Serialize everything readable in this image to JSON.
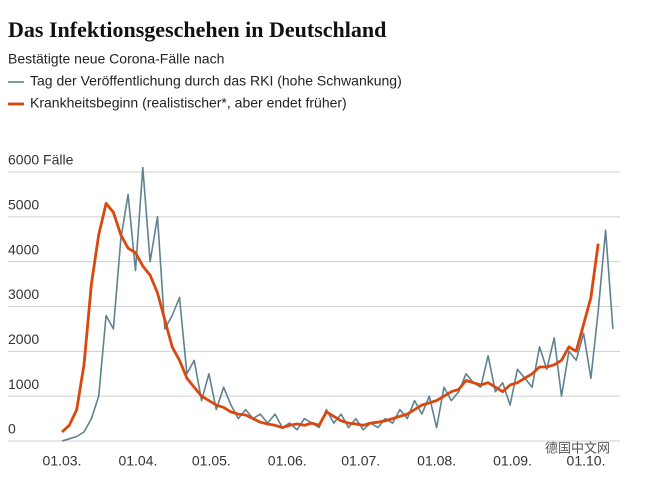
{
  "chart_data": {
    "type": "line",
    "title": "Das Infektionsgeschehen in Deutschland",
    "subtitle": "Bestätigte neue Corona-Fälle nach",
    "watermark": "德国中文网",
    "x": [
      "01.03.",
      "04.03.",
      "07.03.",
      "10.03.",
      "13.03.",
      "16.03.",
      "19.03.",
      "22.03.",
      "25.03.",
      "28.03.",
      "31.03.",
      "03.04.",
      "06.04.",
      "09.04.",
      "12.04.",
      "15.04.",
      "18.04.",
      "21.04.",
      "24.04.",
      "27.04.",
      "30.04.",
      "03.05.",
      "06.05.",
      "09.05.",
      "12.05.",
      "15.05.",
      "18.05.",
      "21.05.",
      "24.05.",
      "27.05.",
      "30.05.",
      "02.06.",
      "05.06.",
      "08.06.",
      "11.06.",
      "14.06.",
      "17.06.",
      "20.06.",
      "23.06.",
      "26.06.",
      "29.06.",
      "02.07.",
      "05.07.",
      "08.07.",
      "11.07.",
      "14.07.",
      "17.07.",
      "20.07.",
      "23.07.",
      "26.07.",
      "29.07.",
      "01.08.",
      "04.08.",
      "07.08.",
      "10.08.",
      "13.08.",
      "16.08.",
      "19.08.",
      "22.08.",
      "25.08.",
      "28.08.",
      "31.08.",
      "03.09.",
      "06.09.",
      "09.09.",
      "12.09.",
      "15.09.",
      "18.09.",
      "21.09.",
      "24.09.",
      "27.09.",
      "30.09.",
      "03.10.",
      "06.10.",
      "09.10.",
      "12.10."
    ],
    "series": [
      {
        "name": "Tag der Veröffentlichung durch das RKI (hohe Schwankung)",
        "color": "#5f8291",
        "width": 1.6,
        "values": [
          0,
          50,
          100,
          200,
          500,
          1000,
          2800,
          2500,
          4500,
          5500,
          3800,
          6100,
          4000,
          5000,
          2500,
          2800,
          3200,
          1500,
          1800,
          900,
          1500,
          700,
          1200,
          800,
          500,
          700,
          500,
          600,
          400,
          600,
          300,
          400,
          250,
          500,
          400,
          300,
          700,
          400,
          600,
          300,
          500,
          250,
          400,
          300,
          500,
          400,
          700,
          500,
          900,
          600,
          1000,
          300,
          1200,
          900,
          1100,
          1500,
          1300,
          1200,
          1900,
          1100,
          1300,
          800,
          1600,
          1400,
          1200,
          2100,
          1600,
          2300,
          1000,
          2000,
          1800,
          2400,
          1400,
          2900,
          4700,
          2500
        ]
      },
      {
        "name": "Krankheitsbeginn (realistischer*, aber endet früher)",
        "color": "#d9480f",
        "width": 2.8,
        "values": [
          200,
          350,
          700,
          1700,
          3500,
          4600,
          5300,
          5100,
          4600,
          4300,
          4200,
          3900,
          3700,
          3300,
          2700,
          2100,
          1800,
          1400,
          1200,
          1000,
          900,
          800,
          750,
          650,
          600,
          580,
          500,
          420,
          380,
          350,
          300,
          350,
          380,
          350,
          400,
          350,
          650,
          550,
          450,
          400,
          380,
          350,
          400,
          420,
          450,
          500,
          550,
          600,
          700,
          800,
          850,
          900,
          1000,
          1100,
          1150,
          1350,
          1300,
          1250,
          1300,
          1200,
          1100,
          1250,
          1300,
          1400,
          1500,
          1650,
          1650,
          1700,
          1800,
          2100,
          2000,
          2600,
          3200,
          4400,
          null,
          null
        ]
      }
    ],
    "xlim": [
      "01.03.",
      "01.10."
    ],
    "xticks": [
      "01.03.",
      "01.04.",
      "01.05.",
      "01.06.",
      "01.07.",
      "01.08.",
      "01.09.",
      "01.10."
    ],
    "ylim": [
      0,
      6000
    ],
    "yticks": [
      0,
      1000,
      2000,
      3000,
      4000,
      5000,
      {
        "value": 6000,
        "label": "6000 Fälle"
      }
    ],
    "grid": true
  }
}
